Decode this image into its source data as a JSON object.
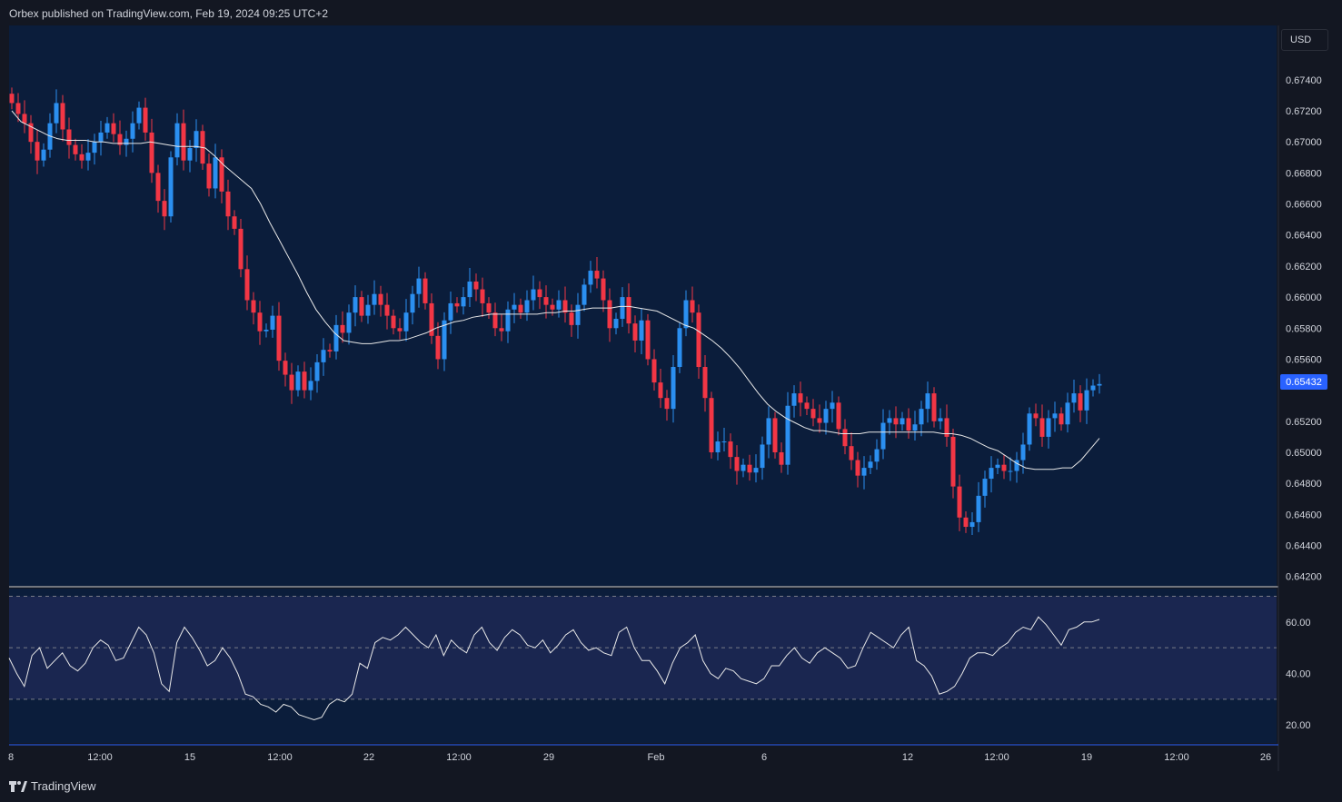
{
  "header": {
    "published": "Orbex published on TradingView.com, Feb 19, 2024 09:25 UTC+2"
  },
  "currency_button": "USD",
  "last_price_label": "0.65432",
  "footer": {
    "brand": "TradingView"
  },
  "colors": {
    "background": "#0b1d3b",
    "up": "#2b8ff0",
    "down": "#f23645",
    "ma_line": "#e8e8e8",
    "rsi_band": "#1a2650",
    "rsi_line": "#e8e8e8",
    "axis": "#2962ff"
  },
  "chart_data": [
    {
      "type": "candlestick",
      "price_axis": {
        "ticks": [
          0.674,
          0.672,
          0.67,
          0.668,
          0.666,
          0.664,
          0.662,
          0.66,
          0.658,
          0.656,
          0.652,
          0.65,
          0.648,
          0.646,
          0.644,
          0.642
        ],
        "tick_labels": [
          "0.67400",
          "0.67200",
          "0.67000",
          "0.66800",
          "0.66600",
          "0.66400",
          "0.66200",
          "0.66000",
          "0.65800",
          "0.65600",
          "0.65200",
          "0.65000",
          "0.64800",
          "0.64600",
          "0.64400",
          "0.64200"
        ],
        "range": [
          0.6414,
          0.6775
        ]
      },
      "time_axis": {
        "labels": [
          "8",
          "12:00",
          "15",
          "12:00",
          "22",
          "12:00",
          "29",
          "Feb",
          "6",
          "12",
          "12:00",
          "19",
          "12:00",
          "26"
        ]
      },
      "last_price": 0.65432,
      "ohlc_source": "approximate 4-hour bars read from the chart (index 0 = first visible bar)",
      "closes": [
        0.6725,
        0.6718,
        0.6712,
        0.67,
        0.6688,
        0.6695,
        0.6712,
        0.6725,
        0.6708,
        0.6698,
        0.6692,
        0.6688,
        0.6693,
        0.67,
        0.6706,
        0.6712,
        0.6705,
        0.6698,
        0.6702,
        0.6712,
        0.6722,
        0.6706,
        0.668,
        0.6662,
        0.6652,
        0.669,
        0.6712,
        0.6688,
        0.6696,
        0.6707,
        0.6686,
        0.667,
        0.669,
        0.6668,
        0.6652,
        0.6644,
        0.6618,
        0.6598,
        0.659,
        0.6578,
        0.6579,
        0.6588,
        0.6559,
        0.655,
        0.654,
        0.6552,
        0.654,
        0.6546,
        0.6558,
        0.6566,
        0.6565,
        0.6582,
        0.6577,
        0.659,
        0.66,
        0.6588,
        0.6595,
        0.6602,
        0.6595,
        0.6588,
        0.658,
        0.6578,
        0.659,
        0.6602,
        0.6612,
        0.6596,
        0.6575,
        0.656,
        0.6585,
        0.6596,
        0.6594,
        0.66,
        0.661,
        0.6605,
        0.6596,
        0.659,
        0.658,
        0.6578,
        0.6592,
        0.6595,
        0.659,
        0.6598,
        0.6605,
        0.66,
        0.6595,
        0.6592,
        0.6598,
        0.659,
        0.6582,
        0.6595,
        0.6608,
        0.6617,
        0.6612,
        0.6598,
        0.658,
        0.6586,
        0.66,
        0.6583,
        0.6572,
        0.6585,
        0.656,
        0.6545,
        0.6535,
        0.6528,
        0.6555,
        0.658,
        0.6598,
        0.659,
        0.6555,
        0.6535,
        0.65,
        0.6507,
        0.6507,
        0.6497,
        0.6488,
        0.6492,
        0.6487,
        0.649,
        0.6505,
        0.6522,
        0.65,
        0.6492,
        0.653,
        0.6538,
        0.6532,
        0.6528,
        0.6522,
        0.6519,
        0.6528,
        0.6532,
        0.6515,
        0.6504,
        0.6495,
        0.6485,
        0.649,
        0.6494,
        0.6502,
        0.6519,
        0.6522,
        0.6518,
        0.6522,
        0.6514,
        0.6518,
        0.6528,
        0.6538,
        0.652,
        0.6522,
        0.651,
        0.6478,
        0.6458,
        0.6452,
        0.6455,
        0.6472,
        0.6483,
        0.649,
        0.6492,
        0.6488,
        0.6488,
        0.6495,
        0.6505,
        0.6525,
        0.6522,
        0.651,
        0.6522,
        0.6525,
        0.6518,
        0.6532,
        0.6538,
        0.6527,
        0.654,
        0.6543,
        0.6544
      ],
      "moving_average": [
        0.672,
        0.6713,
        0.671,
        0.6707,
        0.6704,
        0.6702,
        0.6701,
        0.6701,
        0.6701,
        0.67,
        0.67,
        0.6699,
        0.6699,
        0.6699,
        0.6699,
        0.67,
        0.6699,
        0.6698,
        0.6697,
        0.6697,
        0.6697,
        0.6696,
        0.6691,
        0.6685,
        0.668,
        0.6675,
        0.667,
        0.666,
        0.6648,
        0.6637,
        0.6626,
        0.6615,
        0.6603,
        0.6592,
        0.6584,
        0.6577,
        0.6572,
        0.6571,
        0.657,
        0.657,
        0.6571,
        0.6572,
        0.6572,
        0.6573,
        0.6575,
        0.6577,
        0.658,
        0.6582,
        0.6584,
        0.6585,
        0.6587,
        0.6588,
        0.6589,
        0.6589,
        0.6589,
        0.6589,
        0.6589,
        0.6589,
        0.659,
        0.659,
        0.6591,
        0.6591,
        0.6592,
        0.6593,
        0.6593,
        0.6593,
        0.6594,
        0.6594,
        0.6593,
        0.6592,
        0.6591,
        0.6588,
        0.6585,
        0.6582,
        0.658,
        0.6576,
        0.6572,
        0.6567,
        0.6561,
        0.6554,
        0.6546,
        0.6538,
        0.6531,
        0.6526,
        0.6522,
        0.6519,
        0.6516,
        0.6514,
        0.6514,
        0.6513,
        0.6512,
        0.6512,
        0.6512,
        0.6513,
        0.6513,
        0.6513,
        0.6513,
        0.6513,
        0.6513,
        0.6513,
        0.6513,
        0.6512,
        0.6512,
        0.6511,
        0.6509,
        0.6506,
        0.6503,
        0.6501,
        0.6497,
        0.6493,
        0.649,
        0.6489,
        0.6489,
        0.6489,
        0.649,
        0.649,
        0.6495,
        0.6502,
        0.6509
      ]
    },
    {
      "type": "line",
      "name": "RSI",
      "y_axis": {
        "tick_labels": [
          "60.00",
          "40.00",
          "20.00"
        ],
        "ticks": [
          60,
          40,
          20
        ],
        "range": [
          13,
          73
        ]
      },
      "band": [
        30,
        70
      ],
      "midline": 50,
      "values": [
        46,
        40,
        35,
        47,
        50,
        42,
        45,
        48,
        43,
        41,
        44,
        50,
        53,
        51,
        45,
        46,
        52,
        58,
        55,
        48,
        36,
        33,
        52,
        58,
        54,
        49,
        43,
        45,
        50,
        46,
        40,
        32,
        31,
        28,
        27,
        25,
        28,
        27,
        24,
        23,
        22,
        23,
        28,
        30,
        29,
        32,
        44,
        42,
        52,
        54,
        53,
        55,
        58,
        55,
        52,
        50,
        55,
        47,
        53,
        50,
        48,
        55,
        58,
        52,
        49,
        54,
        57,
        55,
        51,
        50,
        53,
        48,
        51,
        55,
        57,
        52,
        49,
        50,
        48,
        47,
        56,
        58,
        50,
        45,
        45,
        41,
        36,
        44,
        50,
        52,
        55,
        45,
        40,
        38,
        42,
        41,
        38,
        37,
        36,
        38,
        43,
        43,
        47,
        50,
        46,
        44,
        48,
        50,
        48,
        46,
        42,
        43,
        50,
        56,
        54,
        52,
        50,
        55,
        58,
        45,
        43,
        39,
        32,
        33,
        35,
        40,
        46,
        48,
        48,
        47,
        50,
        52,
        56,
        58,
        57,
        62,
        59,
        55,
        51,
        57,
        58,
        60,
        60,
        61
      ]
    }
  ]
}
